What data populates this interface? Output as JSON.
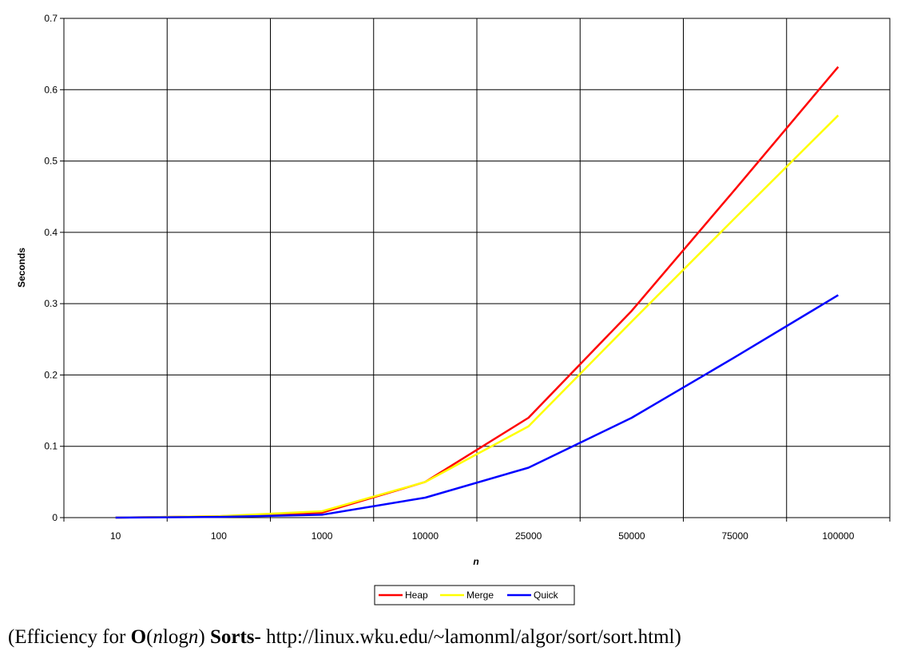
{
  "chart_data": {
    "type": "line",
    "categories": [
      "10",
      "100",
      "1000",
      "10000",
      "25000",
      "50000",
      "75000",
      "100000"
    ],
    "series": [
      {
        "name": "Heap",
        "color": "#ff0000",
        "values": [
          0,
          0.002,
          0.007,
          0.05,
          0.14,
          0.29,
          0.46,
          0.632
        ]
      },
      {
        "name": "Merge",
        "color": "#ffff00",
        "values": [
          0,
          0.002,
          0.009,
          0.05,
          0.128,
          0.275,
          0.42,
          0.564
        ]
      },
      {
        "name": "Quick",
        "color": "#0000ff",
        "values": [
          0,
          0.001,
          0.004,
          0.028,
          0.07,
          0.14,
          0.225,
          0.312
        ]
      }
    ],
    "xlabel": "n",
    "ylabel": "Seconds",
    "ylim": [
      0,
      0.7
    ],
    "yticks": [
      "0",
      "0.1",
      "0.2",
      "0.3",
      "0.4",
      "0.5",
      "0.6",
      "0.7"
    ],
    "grid": true,
    "legend_position": "bottom"
  },
  "caption": {
    "prefix": "(Efficiency for",
    "big_o": "O",
    "open": "(",
    "n1": "n",
    "log": "log",
    "n2": "n",
    "close": ")",
    "sorts": "Sorts-",
    "url": "http://linux.wku.edu/~lamonml/algor/sort/sort.html)"
  }
}
